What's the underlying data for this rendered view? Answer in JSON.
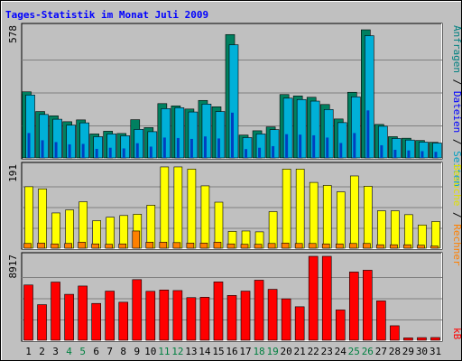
{
  "title": "Tages-Statistik im Monat Juli 2009",
  "colors": {
    "background": "#c0c0c0",
    "frame_dark": "#808080",
    "frame_light": "#ffffff",
    "grid": "#808080",
    "title": "#0000ff",
    "anfragen_front": "#00c0ff",
    "anfragen_back": "#008060",
    "dateien_bar": "#0040c0",
    "seiten_bar": "#00b0d8",
    "besuche_bar": "#ffff00",
    "rechner_bar": "#ff8000",
    "kb_bar": "#ff0000",
    "legend_anfragen": "#008080",
    "legend_dateien": "#0000ff",
    "legend_seiten": "#00a0c0",
    "legend_besuche": "#e0e000",
    "legend_rechner": "#ff8000",
    "legend_kb": "#ff0000",
    "day_normal": "#000000",
    "day_weekend": "#008040"
  },
  "legend_top": {
    "anfragen": "Anfragen",
    "slash1": "/",
    "dateien": "Dateien",
    "slash2": "/",
    "seiten": "Seiten"
  },
  "legend_middle": {
    "besuche": "Besuche",
    "slash": "/",
    "rechner": "Rechner"
  },
  "legend_bottom": {
    "kb": "kB"
  },
  "chart_data": [
    {
      "type": "bar",
      "panel": "top",
      "title": "Tages-Statistik im Monat Juli 2009",
      "ymax_label": "578",
      "ylim": [
        0,
        578
      ],
      "categories": [
        "1",
        "2",
        "3",
        "4",
        "5",
        "6",
        "7",
        "8",
        "9",
        "10",
        "11",
        "12",
        "13",
        "14",
        "15",
        "16",
        "17",
        "18",
        "19",
        "20",
        "21",
        "22",
        "23",
        "24",
        "25",
        "26",
        "27",
        "28",
        "29",
        "30",
        "31"
      ],
      "weekend_days": [
        "4",
        "5",
        "11",
        "12",
        "18",
        "19",
        "25",
        "26"
      ],
      "series": [
        {
          "name": "Anfragen",
          "values": [
            292,
            205,
            186,
            160,
            168,
            106,
            118,
            108,
            169,
            134,
            240,
            230,
            216,
            254,
            226,
            545,
            101,
            120,
            137,
            280,
            274,
            268,
            236,
            172,
            290,
            566,
            148,
            94,
            87,
            77,
            69
          ]
        },
        {
          "name": "Dateien",
          "values": [
            110,
            78,
            70,
            60,
            62,
            40,
            45,
            42,
            65,
            50,
            90,
            88,
            84,
            95,
            86,
            200,
            39,
            45,
            52,
            105,
            103,
            100,
            90,
            66,
            110,
            210,
            56,
            36,
            33,
            30,
            27
          ]
        },
        {
          "name": "Seiten",
          "values": [
            278,
            192,
            171,
            145,
            155,
            94,
            106,
            98,
            126,
            116,
            218,
            222,
            203,
            238,
            205,
            500,
            90,
            106,
            125,
            264,
            258,
            251,
            214,
            156,
            270,
            540,
            140,
            86,
            79,
            70,
            66
          ]
        }
      ]
    },
    {
      "type": "bar",
      "panel": "middle",
      "ymax_label": "191",
      "ylim": [
        0,
        191
      ],
      "categories": [
        "1",
        "2",
        "3",
        "4",
        "5",
        "6",
        "7",
        "8",
        "9",
        "10",
        "11",
        "12",
        "13",
        "14",
        "15",
        "16",
        "17",
        "18",
        "19",
        "20",
        "21",
        "22",
        "23",
        "24",
        "25",
        "26",
        "27",
        "28",
        "29",
        "30",
        "31"
      ],
      "series": [
        {
          "name": "Besuche",
          "values": [
            143,
            138,
            82,
            89,
            108,
            64,
            72,
            76,
            79,
            100,
            189,
            189,
            184,
            145,
            107,
            39,
            40,
            38,
            85,
            184,
            184,
            153,
            146,
            131,
            168,
            144,
            87,
            87,
            78,
            54,
            62
          ]
        },
        {
          "name": "Rechner",
          "values": [
            11,
            12,
            10,
            11,
            14,
            10,
            9,
            10,
            40,
            14,
            14,
            13,
            12,
            12,
            14,
            10,
            9,
            9,
            11,
            12,
            11,
            11,
            10,
            10,
            11,
            11,
            8,
            8,
            8,
            7,
            5
          ]
        }
      ]
    },
    {
      "type": "bar",
      "panel": "bottom",
      "ymax_label": "8917",
      "ylim": [
        0,
        8917
      ],
      "categories": [
        "1",
        "2",
        "3",
        "4",
        "5",
        "6",
        "7",
        "8",
        "9",
        "10",
        "11",
        "12",
        "13",
        "14",
        "15",
        "16",
        "17",
        "18",
        "19",
        "20",
        "21",
        "22",
        "23",
        "24",
        "25",
        "26",
        "27",
        "28",
        "29",
        "30",
        "31"
      ],
      "series": [
        {
          "name": "kB",
          "values": [
            5870,
            3780,
            6180,
            4880,
            5760,
            3910,
            5220,
            4040,
            6440,
            5200,
            5340,
            5280,
            4530,
            4570,
            6200,
            4760,
            5220,
            6380,
            5410,
            4400,
            3560,
            8917,
            8917,
            3220,
            7250,
            7440,
            4180,
            1540,
            250,
            280,
            290
          ]
        }
      ]
    }
  ]
}
